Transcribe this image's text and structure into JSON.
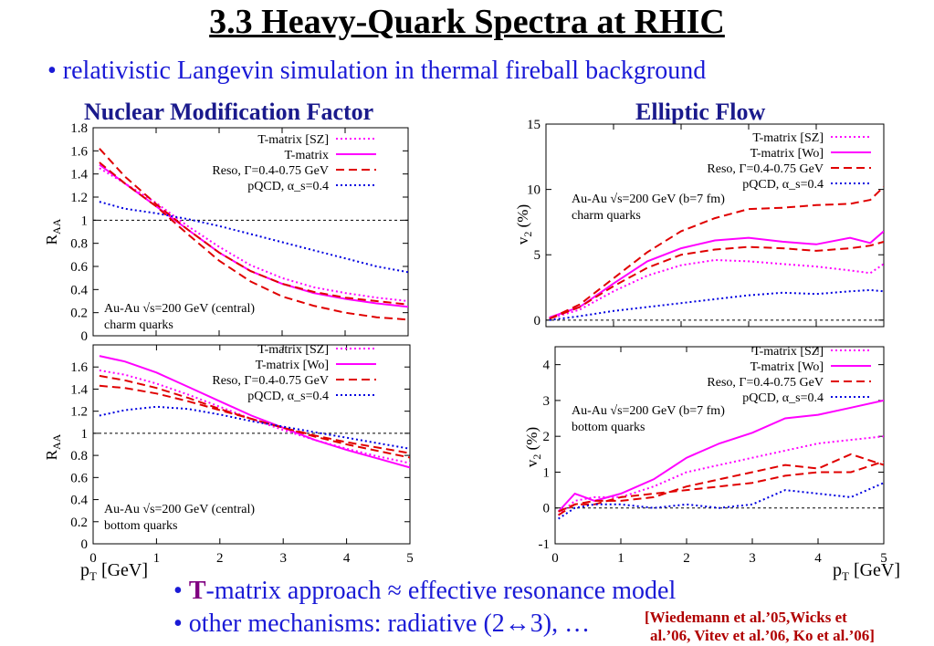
{
  "slide": {
    "title": "3.3 Heavy-Quark Spectra at RHIC",
    "bullet1": "• relativistic Langevin simulation in thermal fireball background",
    "left_heading": "Nuclear Modification Factor",
    "right_heading": "Elliptic Flow",
    "bullet2_prefix": "• ",
    "bullet2_T": "T",
    "bullet2_rest": "-matrix approach  ≈  effective resonance model",
    "bullet3": "• other mechanisms: radiative (2↔3), …",
    "reference_line1": "[Wiedemann et al.’05,Wicks et",
    "reference_line2": "al.’06, Vitev et al.’06, Ko et al.’06]",
    "xlabel_left_main": "p",
    "xlabel_left_sub": "T",
    "xlabel_left_unit": " [GeV]",
    "xlabel_right_main": "p",
    "xlabel_right_sub": "T",
    "xlabel_right_unit": " [GeV]"
  },
  "colors": {
    "magenta": "#ff00ff",
    "red": "#e00000",
    "blue": "#0000e0",
    "title_blue": "#1a1ad6",
    "heading": "#1a1a8c"
  },
  "chart_data": [
    {
      "id": "raa-charm",
      "type": "line",
      "xlim": [
        0,
        5
      ],
      "ylim": [
        0,
        1.8
      ],
      "yticks": [
        "0",
        "0.2",
        "0.4",
        "0.6",
        "0.8",
        "1",
        "1.2",
        "1.4",
        "1.6",
        "1.8"
      ],
      "ytick_values": [
        0,
        0.2,
        0.4,
        0.6,
        0.8,
        1,
        1.2,
        1.4,
        1.6,
        1.8
      ],
      "ylabel": "R",
      "ylabel_sub": "AA",
      "reference_line": 1,
      "annotation": [
        "Au-Au √s=200 GeV (central)",
        "charm quarks"
      ],
      "annotation_pos": "bottom-left",
      "legend_pos": "top-right",
      "series": [
        {
          "name": "T-matrix [SZ]",
          "style": "dotted",
          "color": "#ff00ff",
          "x": [
            0.1,
            0.5,
            1,
            1.5,
            2,
            2.5,
            3,
            3.5,
            4,
            4.5,
            5
          ],
          "y": [
            1.45,
            1.32,
            1.15,
            0.95,
            0.77,
            0.61,
            0.5,
            0.42,
            0.37,
            0.33,
            0.3
          ]
        },
        {
          "name": "T-matrix",
          "style": "solid",
          "color": "#ff00ff",
          "x": [
            0.1,
            0.5,
            1,
            1.5,
            2,
            2.5,
            3,
            3.5,
            4,
            4.5,
            5
          ],
          "y": [
            1.48,
            1.32,
            1.12,
            0.92,
            0.72,
            0.56,
            0.45,
            0.37,
            0.32,
            0.28,
            0.25
          ]
        },
        {
          "name": "Reso, Γ=0.4-0.75 GeV",
          "style": "dashed",
          "color": "#e00000",
          "x": [
            0.1,
            0.5,
            1,
            1.5,
            2,
            2.5,
            3,
            3.5,
            4,
            4.5,
            5
          ],
          "y": [
            1.62,
            1.38,
            1.14,
            0.92,
            0.72,
            0.56,
            0.45,
            0.38,
            0.33,
            0.3,
            0.27
          ]
        },
        {
          "name": "",
          "style": "dashed",
          "color": "#e00000",
          "x": [
            0.1,
            0.5,
            1,
            1.5,
            2,
            2.5,
            3,
            3.5,
            4,
            4.5,
            5
          ],
          "y": [
            1.5,
            1.32,
            1.12,
            0.88,
            0.65,
            0.47,
            0.34,
            0.26,
            0.2,
            0.16,
            0.14
          ]
        },
        {
          "name": "pQCD, α_s=0.4",
          "style": "dotted",
          "color": "#0000e0",
          "x": [
            0.1,
            0.5,
            1,
            1.5,
            2,
            2.5,
            3,
            3.5,
            4,
            4.5,
            5
          ],
          "y": [
            1.16,
            1.1,
            1.06,
            1.01,
            0.95,
            0.88,
            0.81,
            0.74,
            0.67,
            0.6,
            0.55
          ]
        }
      ]
    },
    {
      "id": "raa-bottom",
      "type": "line",
      "xlim": [
        0,
        5
      ],
      "ylim": [
        0,
        1.8
      ],
      "xticks": [
        "0",
        "1",
        "2",
        "3",
        "4",
        "5"
      ],
      "xtick_values": [
        0,
        1,
        2,
        3,
        4,
        5
      ],
      "yticks": [
        "0",
        "0.2",
        "0.4",
        "0.6",
        "0.8",
        "1",
        "1.2",
        "1.4",
        "1.6"
      ],
      "ytick_values": [
        0,
        0.2,
        0.4,
        0.6,
        0.8,
        1,
        1.2,
        1.4,
        1.6
      ],
      "ylabel": "R",
      "ylabel_sub": "AA",
      "reference_line": 1,
      "annotation": [
        "Au-Au √s=200 GeV (central)",
        "bottom quarks"
      ],
      "annotation_pos": "bottom-left",
      "legend_pos": "top-right",
      "series": [
        {
          "name": "T-matrix [SZ]",
          "style": "dotted",
          "color": "#ff00ff",
          "x": [
            0.1,
            0.5,
            1,
            1.5,
            2,
            2.5,
            3,
            3.5,
            4,
            4.5,
            5
          ],
          "y": [
            1.57,
            1.53,
            1.45,
            1.35,
            1.24,
            1.13,
            1.03,
            0.94,
            0.86,
            0.79,
            0.73
          ]
        },
        {
          "name": "T-matrix [Wo]",
          "style": "solid",
          "color": "#ff00ff",
          "x": [
            0.1,
            0.5,
            1,
            1.5,
            2,
            2.5,
            3,
            3.5,
            4,
            4.5,
            5
          ],
          "y": [
            1.7,
            1.65,
            1.55,
            1.42,
            1.29,
            1.16,
            1.05,
            0.94,
            0.85,
            0.77,
            0.69
          ]
        },
        {
          "name": "Reso, Γ=0.4-0.75 GeV",
          "style": "dashed",
          "color": "#e00000",
          "x": [
            0.1,
            0.5,
            1,
            1.5,
            2,
            2.5,
            3,
            3.5,
            4,
            4.5,
            5
          ],
          "y": [
            1.52,
            1.48,
            1.41,
            1.32,
            1.22,
            1.13,
            1.05,
            0.97,
            0.9,
            0.84,
            0.78
          ]
        },
        {
          "name": "",
          "style": "dashed",
          "color": "#e00000",
          "x": [
            0.1,
            0.5,
            1,
            1.5,
            2,
            2.5,
            3,
            3.5,
            4,
            4.5,
            5
          ],
          "y": [
            1.43,
            1.41,
            1.36,
            1.29,
            1.21,
            1.13,
            1.05,
            0.98,
            0.92,
            0.87,
            0.82
          ]
        },
        {
          "name": "pQCD, α_s=0.4",
          "style": "dotted",
          "color": "#0000e0",
          "x": [
            0.1,
            0.5,
            1,
            1.5,
            2,
            2.5,
            3,
            3.5,
            4,
            4.5,
            5
          ],
          "y": [
            1.16,
            1.21,
            1.24,
            1.22,
            1.17,
            1.11,
            1.06,
            1.01,
            0.96,
            0.91,
            0.86
          ]
        }
      ]
    },
    {
      "id": "v2-charm",
      "type": "line",
      "xlim": [
        0,
        5
      ],
      "ylim": [
        -0.5,
        15
      ],
      "yticks": [
        "0",
        "5",
        "10",
        "15"
      ],
      "ytick_values": [
        0,
        5,
        10,
        15
      ],
      "ylabel": "v",
      "ylabel_sub": "2",
      "ylabel_unit": " (%)",
      "reference_line": 0,
      "annotation": [
        "Au-Au √s=200 GeV (b=7 fm)",
        "charm quarks"
      ],
      "annotation_pos": "top-left",
      "legend_pos": "top-right",
      "series": [
        {
          "name": "T-matrix [SZ]",
          "style": "dotted",
          "color": "#ff00ff",
          "x": [
            0.05,
            0.5,
            1,
            1.5,
            2,
            2.5,
            3,
            3.5,
            4,
            4.5,
            4.8,
            5
          ],
          "y": [
            0.1,
            0.8,
            2.2,
            3.4,
            4.2,
            4.6,
            4.5,
            4.3,
            4.1,
            3.8,
            3.6,
            4.3
          ]
        },
        {
          "name": "T-matrix [Wo]",
          "style": "solid",
          "color": "#ff00ff",
          "x": [
            0.05,
            0.5,
            1,
            1.5,
            2,
            2.5,
            3,
            3.5,
            4,
            4.5,
            4.8,
            5
          ],
          "y": [
            0.2,
            1.0,
            2.8,
            4.5,
            5.5,
            6.1,
            6.3,
            6.0,
            5.8,
            6.3,
            5.9,
            6.8
          ]
        },
        {
          "name": "Reso, Γ=0.4-0.75 GeV",
          "style": "dashed",
          "color": "#e00000",
          "x": [
            0.05,
            0.5,
            1,
            1.5,
            2,
            2.5,
            3,
            3.5,
            4,
            4.5,
            4.8,
            5
          ],
          "y": [
            0.1,
            1.2,
            3.2,
            5.2,
            6.8,
            7.8,
            8.5,
            8.6,
            8.8,
            8.9,
            9.2,
            10.2
          ]
        },
        {
          "name": "",
          "style": "dashed",
          "color": "#e00000",
          "x": [
            0.05,
            0.5,
            1,
            1.5,
            2,
            2.5,
            3,
            3.5,
            4,
            4.5,
            4.8,
            5
          ],
          "y": [
            0.1,
            1.0,
            2.6,
            4.0,
            5.0,
            5.4,
            5.6,
            5.5,
            5.3,
            5.5,
            5.7,
            6.0
          ]
        },
        {
          "name": "pQCD, α_s=0.4",
          "style": "dotted",
          "color": "#0000e0",
          "x": [
            0.05,
            0.5,
            1,
            1.5,
            2,
            2.5,
            3,
            3.5,
            4,
            4.5,
            4.8,
            5
          ],
          "y": [
            0.0,
            0.3,
            0.7,
            1.0,
            1.3,
            1.6,
            1.9,
            2.1,
            2.0,
            2.2,
            2.3,
            2.2
          ]
        }
      ]
    },
    {
      "id": "v2-bottom",
      "type": "line",
      "xlim": [
        0,
        5
      ],
      "ylim": [
        -1,
        4.5
      ],
      "xticks": [
        "0",
        "1",
        "2",
        "3",
        "4",
        "5"
      ],
      "xtick_values": [
        0,
        1,
        2,
        3,
        4,
        5
      ],
      "yticks": [
        "-1",
        "0",
        "1",
        "2",
        "3",
        "4"
      ],
      "ytick_values": [
        -1,
        0,
        1,
        2,
        3,
        4
      ],
      "ylabel": "v",
      "ylabel_sub": "2",
      "ylabel_unit": " (%)",
      "reference_line": 0,
      "annotation": [
        "Au-Au √s=200 GeV (b=7 fm)",
        "bottom quarks"
      ],
      "annotation_pos": "top-left",
      "legend_pos": "top-right",
      "series": [
        {
          "name": "T-matrix [SZ]",
          "style": "dotted",
          "color": "#ff00ff",
          "x": [
            0.05,
            0.3,
            0.6,
            1,
            1.5,
            2,
            2.5,
            3,
            3.5,
            4,
            4.5,
            5
          ],
          "y": [
            -0.2,
            0.2,
            0.3,
            0.3,
            0.6,
            1.0,
            1.2,
            1.4,
            1.6,
            1.8,
            1.9,
            2.0
          ]
        },
        {
          "name": "T-matrix [Wo]",
          "style": "solid",
          "color": "#ff00ff",
          "x": [
            0.05,
            0.3,
            0.6,
            1,
            1.5,
            2,
            2.5,
            3,
            3.5,
            4,
            4.5,
            5
          ],
          "y": [
            -0.1,
            0.4,
            0.2,
            0.4,
            0.8,
            1.4,
            1.8,
            2.1,
            2.5,
            2.6,
            2.8,
            3.0
          ]
        },
        {
          "name": "Reso, Γ=0.4-0.75 GeV",
          "style": "dashed",
          "color": "#e00000",
          "x": [
            0.05,
            0.3,
            0.6,
            1,
            1.5,
            2,
            2.5,
            3,
            3.5,
            4,
            4.5,
            5
          ],
          "y": [
            -0.1,
            0.1,
            0.2,
            0.2,
            0.3,
            0.6,
            0.8,
            1.0,
            1.2,
            1.1,
            1.5,
            1.2
          ]
        },
        {
          "name": "",
          "style": "dashed",
          "color": "#e00000",
          "x": [
            0.05,
            0.3,
            0.6,
            1,
            1.5,
            2,
            2.5,
            3,
            3.5,
            4,
            4.5,
            5
          ],
          "y": [
            -0.2,
            0.1,
            0.1,
            0.3,
            0.4,
            0.5,
            0.6,
            0.7,
            0.9,
            1.0,
            1.0,
            1.3
          ]
        },
        {
          "name": "pQCD, α_s=0.4",
          "style": "dotted",
          "color": "#0000e0",
          "x": [
            0.05,
            0.3,
            0.6,
            1,
            1.5,
            2,
            2.5,
            3,
            3.5,
            4,
            4.5,
            5
          ],
          "y": [
            -0.3,
            0.0,
            0.1,
            0.1,
            0.0,
            0.1,
            0.0,
            0.1,
            0.5,
            0.4,
            0.3,
            0.7
          ]
        }
      ]
    }
  ]
}
